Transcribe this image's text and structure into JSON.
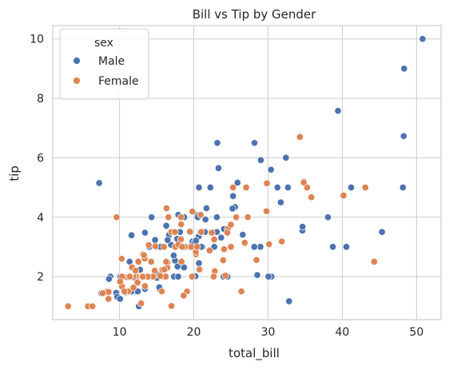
{
  "chart_data": {
    "type": "scatter",
    "title": "Bill vs Tip by Gender",
    "xlabel": "total_bill",
    "ylabel": "tip",
    "xlim": [
      1.0,
      53.3
    ],
    "ylim": [
      0.55,
      10.45
    ],
    "x_ticks": [
      10,
      20,
      30,
      40,
      50
    ],
    "y_ticks": [
      2,
      4,
      6,
      8,
      10
    ],
    "grid": true,
    "legend": {
      "title": "sex",
      "placement": "top-left"
    },
    "series": [
      {
        "name": "Male",
        "color": "#4c72b0",
        "points": [
          [
            10.34,
            1.66
          ],
          [
            21.01,
            3.5
          ],
          [
            23.68,
            3.31
          ],
          [
            25.29,
            4.71
          ],
          [
            8.77,
            2.0
          ],
          [
            26.88,
            3.12
          ],
          [
            15.04,
            1.96
          ],
          [
            14.78,
            3.23
          ],
          [
            10.27,
            1.71
          ],
          [
            15.42,
            1.57
          ],
          [
            18.43,
            3.0
          ],
          [
            21.58,
            3.92
          ],
          [
            16.29,
            3.71
          ],
          [
            17.46,
            2.54
          ],
          [
            20.65,
            3.35
          ],
          [
            17.92,
            4.08
          ],
          [
            39.42,
            7.58
          ],
          [
            19.82,
            3.18
          ],
          [
            17.81,
            2.34
          ],
          [
            13.37,
            2.0
          ],
          [
            12.69,
            2.0
          ],
          [
            21.7,
            4.3
          ],
          [
            19.65,
            3.0
          ],
          [
            9.55,
            1.45
          ],
          [
            18.35,
            2.5
          ],
          [
            15.06,
            3.0
          ],
          [
            20.69,
            2.45
          ],
          [
            17.78,
            3.27
          ],
          [
            24.06,
            3.6
          ],
          [
            16.31,
            2.0
          ],
          [
            18.69,
            2.31
          ],
          [
            31.27,
            5.0
          ],
          [
            16.04,
            2.24
          ],
          [
            17.32,
            2.0
          ],
          [
            16.4,
            2.5
          ],
          [
            20.29,
            2.75
          ],
          [
            21.16,
            3.0
          ],
          [
            22.49,
            3.5
          ],
          [
            20.08,
            3.15
          ],
          [
            12.74,
            2.0
          ],
          [
            16.93,
            3.07
          ],
          [
            28.55,
            2.05
          ],
          [
            23.1,
            4.0
          ],
          [
            48.27,
            6.73
          ],
          [
            20.23,
            2.01
          ],
          [
            15.01,
            2.09
          ],
          [
            12.02,
            1.97
          ],
          [
            24.55,
            2.0
          ],
          [
            25.0,
            3.75
          ],
          [
            13.39,
            2.61
          ],
          [
            16.21,
            2.0
          ],
          [
            27.2,
            4.0
          ],
          [
            22.76,
            3.0
          ],
          [
            17.29,
            2.71
          ],
          [
            19.44,
            3.0
          ],
          [
            16.66,
            3.4
          ],
          [
            15.98,
            2.03
          ],
          [
            21.5,
            3.5
          ],
          [
            10.33,
            2.0
          ],
          [
            28.97,
            3.0
          ],
          [
            17.89,
            2.0
          ],
          [
            14.48,
            2.0
          ],
          [
            34.81,
            5.2
          ],
          [
            9.68,
            1.32
          ],
          [
            30.4,
            5.6
          ],
          [
            23.17,
            6.5
          ],
          [
            40.17,
            4.73
          ],
          [
            27.28,
            4.0
          ],
          [
            12.03,
            1.5
          ],
          [
            21.01,
            3.0
          ],
          [
            12.46,
            1.5
          ],
          [
            11.35,
            2.5
          ],
          [
            15.38,
            3.0
          ],
          [
            12.16,
            2.2
          ],
          [
            13.42,
            3.48
          ],
          [
            8.58,
            1.92
          ],
          [
            15.98,
            3.0
          ],
          [
            13.42,
            1.58
          ],
          [
            16.27,
            2.5
          ],
          [
            10.09,
            2.0
          ],
          [
            20.45,
            3.0
          ],
          [
            13.28,
            2.72
          ],
          [
            24.01,
            2.0
          ],
          [
            15.69,
            3.0
          ],
          [
            11.61,
            3.39
          ],
          [
            10.77,
            1.47
          ],
          [
            15.53,
            3.0
          ],
          [
            10.07,
            1.25
          ],
          [
            12.6,
            1.0
          ],
          [
            32.83,
            1.17
          ],
          [
            35.83,
            4.67
          ],
          [
            29.03,
            5.92
          ],
          [
            48.33,
            9.0
          ],
          [
            20.29,
            3.21
          ],
          [
            30.46,
            2.0
          ],
          [
            18.15,
            3.5
          ],
          [
            23.1,
            3.5
          ],
          [
            11.59,
            1.5
          ],
          [
            18.78,
            3.0
          ],
          [
            28.17,
            6.5
          ],
          [
            7.25,
            5.15
          ],
          [
            31.71,
            4.5
          ],
          [
            50.81,
            10.0
          ],
          [
            32.68,
            5.0
          ],
          [
            40.55,
            3.0
          ],
          [
            20.69,
            5.0
          ],
          [
            20.9,
            3.5
          ],
          [
            30.06,
            2.0
          ],
          [
            41.19,
            5.0
          ],
          [
            38.07,
            4.0
          ],
          [
            22.42,
            3.48
          ],
          [
            16.0,
            2.0
          ],
          [
            22.23,
            5.0
          ],
          [
            18.71,
            4.0
          ],
          [
            13.81,
            2.0
          ],
          [
            13.37,
            2.0
          ],
          [
            25.56,
            4.34
          ],
          [
            21.5,
            3.5
          ],
          [
            11.69,
            2.31
          ],
          [
            28.15,
            3.0
          ],
          [
            24.59,
            3.61
          ],
          [
            44.3,
            2.5
          ],
          [
            22.75,
            3.25
          ],
          [
            20.92,
            4.08
          ],
          [
            15.36,
            1.64
          ],
          [
            20.49,
            4.06
          ],
          [
            25.21,
            4.29
          ],
          [
            18.24,
            3.76
          ],
          [
            14.31,
            4.0
          ],
          [
            14.0,
            3.0
          ],
          [
            32.4,
            6.0
          ],
          [
            20.27,
            2.83
          ],
          [
            25.89,
            5.16
          ],
          [
            48.17,
            5.0
          ],
          [
            27.05,
            5.0
          ],
          [
            16.58,
            4.0
          ],
          [
            7.56,
            1.44
          ],
          [
            10.34,
            2.0
          ],
          [
            43.11,
            5.0
          ],
          [
            13.0,
            2.0
          ],
          [
            13.51,
            2.0
          ],
          [
            18.71,
            4.0
          ],
          [
            12.74,
            2.01
          ],
          [
            13.0,
            2.0
          ],
          [
            16.4,
            2.5
          ],
          [
            20.53,
            4.0
          ],
          [
            16.47,
            3.23
          ],
          [
            26.59,
            3.41
          ],
          [
            38.73,
            3.0
          ],
          [
            24.27,
            2.03
          ],
          [
            12.76,
            2.23
          ],
          [
            30.06,
            2.0
          ],
          [
            25.89,
            5.16
          ],
          [
            34.63,
            3.55
          ],
          [
            34.65,
            3.68
          ],
          [
            23.33,
            5.65
          ],
          [
            45.35,
            3.5
          ],
          [
            23.17,
            6.5
          ],
          [
            40.55,
            3.0
          ],
          [
            12.9,
            1.1
          ],
          [
            28.15,
            3.0
          ],
          [
            11.59,
            1.5
          ]
        ]
      },
      {
        "name": "Female",
        "color": "#dd8452",
        "points": [
          [
            16.99,
            1.01
          ],
          [
            24.59,
            3.61
          ],
          [
            35.26,
            5.0
          ],
          [
            14.83,
            3.02
          ],
          [
            10.33,
            1.67
          ],
          [
            16.97,
            3.5
          ],
          [
            20.29,
            2.75
          ],
          [
            15.77,
            2.23
          ],
          [
            19.65,
            3.0
          ],
          [
            14.26,
            2.5
          ],
          [
            10.29,
            2.6
          ],
          [
            11.02,
            1.98
          ],
          [
            26.41,
            1.5
          ],
          [
            20.76,
            2.24
          ],
          [
            16.45,
            2.47
          ],
          [
            3.07,
            1.0
          ],
          [
            26.86,
            3.14
          ],
          [
            25.28,
            5.0
          ],
          [
            14.73,
            2.2
          ],
          [
            5.75,
            1.0
          ],
          [
            16.32,
            4.3
          ],
          [
            22.75,
            3.25
          ],
          [
            40.17,
            4.73
          ],
          [
            31.85,
            3.18
          ],
          [
            29.8,
            4.2
          ],
          [
            8.52,
            1.48
          ],
          [
            14.52,
            2.0
          ],
          [
            11.38,
            2.0
          ],
          [
            22.82,
            2.18
          ],
          [
            19.08,
            1.5
          ],
          [
            20.27,
            2.83
          ],
          [
            11.17,
            1.5
          ],
          [
            12.26,
            2.0
          ],
          [
            18.26,
            3.25
          ],
          [
            8.51,
            1.25
          ],
          [
            10.33,
            2.0
          ],
          [
            14.15,
            2.0
          ],
          [
            16.0,
            2.0
          ],
          [
            13.16,
            2.75
          ],
          [
            17.47,
            3.5
          ],
          [
            27.05,
            5.0
          ],
          [
            16.43,
            2.3
          ],
          [
            8.35,
            1.5
          ],
          [
            18.64,
            1.36
          ],
          [
            11.87,
            1.63
          ],
          [
            29.85,
            5.14
          ],
          [
            25.0,
            3.75
          ],
          [
            13.39,
            2.61
          ],
          [
            16.21,
            2.0
          ],
          [
            17.51,
            3.0
          ],
          [
            10.65,
            1.5
          ],
          [
            12.43,
            1.8
          ],
          [
            24.08,
            2.92
          ],
          [
            11.69,
            2.31
          ],
          [
            13.42,
            1.68
          ],
          [
            14.26,
            2.5
          ],
          [
            15.95,
            2.0
          ],
          [
            12.48,
            2.52
          ],
          [
            29.8,
            4.2
          ],
          [
            8.52,
            1.48
          ],
          [
            14.52,
            2.0
          ],
          [
            11.38,
            2.0
          ],
          [
            17.92,
            3.08
          ],
          [
            19.77,
            2.0
          ],
          [
            16.21,
            2.0
          ],
          [
            13.81,
            2.0
          ],
          [
            12.54,
            2.5
          ],
          [
            12.69,
            2.0
          ],
          [
            9.6,
            4.0
          ],
          [
            34.3,
            6.7
          ],
          [
            18.29,
            3.76
          ],
          [
            28.44,
            2.56
          ],
          [
            15.98,
            3.0
          ],
          [
            13.94,
            3.06
          ],
          [
            18.28,
            4.0
          ],
          [
            20.76,
            2.24
          ],
          [
            22.12,
            2.88
          ],
          [
            24.27,
            2.03
          ],
          [
            44.3,
            2.5
          ],
          [
            22.42,
            3.48
          ],
          [
            20.92,
            4.08
          ],
          [
            15.48,
            2.02
          ],
          [
            16.58,
            4.0
          ],
          [
            18.78,
            3.0
          ],
          [
            13.28,
            2.72
          ],
          [
            17.47,
            3.5
          ],
          [
            10.07,
            1.83
          ],
          [
            16.04,
            2.24
          ],
          [
            25.71,
            4.0
          ],
          [
            18.35,
            2.5
          ],
          [
            7.74,
            1.44
          ],
          [
            13.0,
            2.0
          ],
          [
            12.16,
            2.2
          ],
          [
            12.9,
            1.1
          ],
          [
            19.81,
            4.19
          ],
          [
            21.01,
            3.5
          ],
          [
            15.69,
            1.5
          ],
          [
            19.49,
            3.51
          ],
          [
            18.43,
            3.0
          ],
          [
            30.14,
            3.09
          ],
          [
            34.81,
            5.17
          ],
          [
            43.11,
            5.0
          ],
          [
            13.13,
            2.0
          ],
          [
            23.95,
            2.55
          ],
          [
            20.45,
            3.0
          ],
          [
            22.67,
            2.0
          ],
          [
            25.0,
            3.0
          ],
          [
            24.52,
            3.48
          ],
          [
            35.83,
            4.67
          ],
          [
            16.27,
            2.5
          ],
          [
            6.35,
            1.0
          ],
          [
            27.28,
            4.0
          ]
        ]
      }
    ]
  }
}
